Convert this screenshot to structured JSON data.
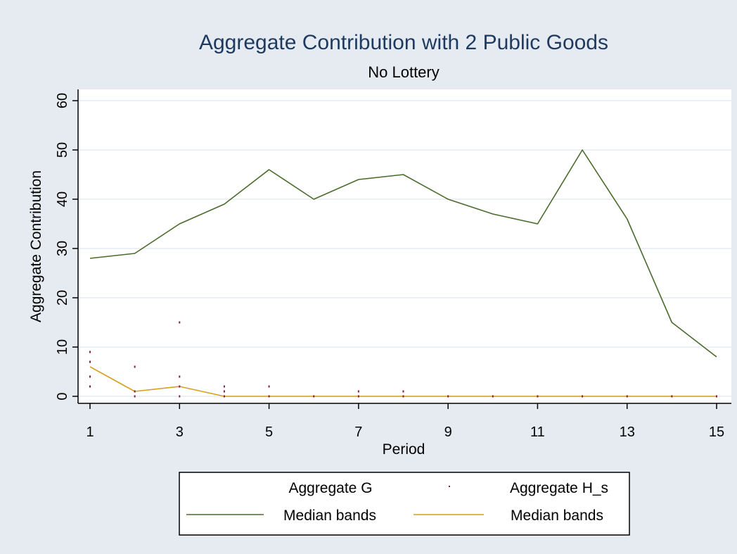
{
  "chart_data": {
    "type": "line",
    "title": "Aggregate Contribution with 2 Public Goods",
    "subtitle": "No Lottery",
    "xlabel": "Period",
    "ylabel": "Aggregate Contribution",
    "xlim": [
      1,
      15
    ],
    "ylim": [
      0,
      60
    ],
    "x_ticks": [
      "1",
      "3",
      "5",
      "7",
      "9",
      "11",
      "13",
      "15"
    ],
    "y_ticks": [
      "0",
      "10",
      "20",
      "30",
      "40",
      "50",
      "60"
    ],
    "grid": true,
    "legend_position": "bottom",
    "legend": [
      {
        "label": "Aggregate G",
        "style": "none",
        "color": ""
      },
      {
        "label": "Aggregate H_s",
        "style": "dot",
        "color": "#8b1a3a"
      },
      {
        "label": "Median bands",
        "style": "line",
        "color": "#4a6b2c"
      },
      {
        "label": "Median bands",
        "style": "line",
        "color": "#d4a020"
      }
    ],
    "series": [
      {
        "kind": "line",
        "color": "#4a6b2c",
        "x": [
          1,
          2,
          3,
          4,
          5,
          6,
          7,
          8,
          9,
          10,
          11,
          12,
          13,
          14,
          15
        ],
        "y": [
          28,
          29,
          35,
          39,
          46,
          40,
          44,
          45,
          40,
          37,
          35,
          50,
          36,
          15,
          8
        ]
      },
      {
        "kind": "line",
        "color": "#d4a020",
        "x": [
          1,
          2,
          3,
          4,
          5,
          6,
          7,
          8,
          9,
          10,
          11,
          12,
          13,
          14,
          15
        ],
        "y": [
          6,
          1,
          2,
          0,
          0,
          0,
          0,
          0,
          0,
          0,
          0,
          0,
          0,
          0,
          0
        ]
      },
      {
        "kind": "scatter",
        "color": "#8b1a3a",
        "points": [
          [
            1,
            2
          ],
          [
            1,
            4
          ],
          [
            1,
            7
          ],
          [
            1,
            9
          ],
          [
            2,
            0
          ],
          [
            2,
            1
          ],
          [
            2,
            6
          ],
          [
            3,
            0
          ],
          [
            3,
            2
          ],
          [
            3,
            4
          ],
          [
            3,
            15
          ],
          [
            4,
            0
          ],
          [
            4,
            1
          ],
          [
            4,
            2
          ],
          [
            5,
            0
          ],
          [
            5,
            2
          ],
          [
            6,
            0
          ],
          [
            7,
            0
          ],
          [
            7,
            1
          ],
          [
            8,
            0
          ],
          [
            8,
            1
          ],
          [
            9,
            0
          ],
          [
            10,
            0
          ],
          [
            11,
            0
          ],
          [
            12,
            0
          ],
          [
            13,
            0
          ],
          [
            14,
            0
          ],
          [
            15,
            0
          ]
        ]
      }
    ]
  },
  "colors": {
    "background": "#e6ebf2",
    "plot": "#ffffff",
    "grid": "#e6ebf2",
    "axis": "#000000"
  }
}
